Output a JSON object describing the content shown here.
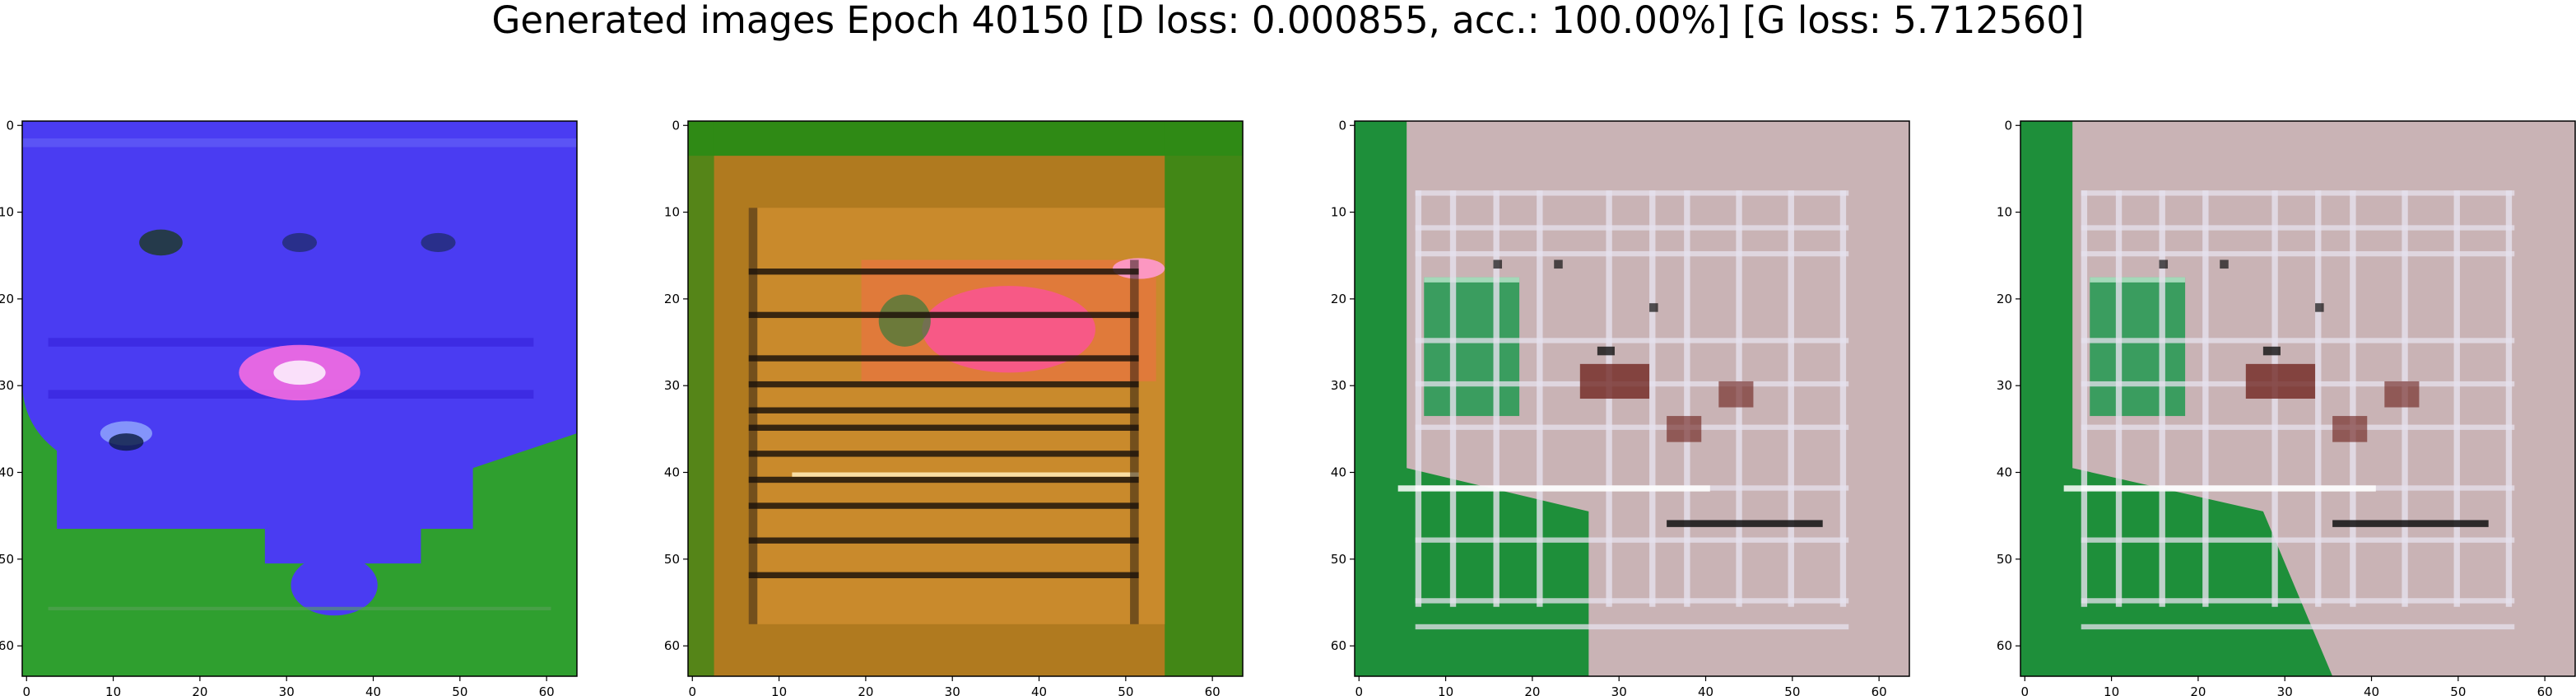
{
  "figure": {
    "title": "Generated images Epoch 40150 [D loss: 0.000855, acc.: 100.00%] [G loss: 5.712560]"
  },
  "chart_data": [
    {
      "type": "heatmap",
      "grid": false,
      "x_ticks": [
        "0",
        "10",
        "20",
        "30",
        "40",
        "50",
        "60"
      ],
      "y_ticks": [
        "0",
        "10",
        "20",
        "30",
        "40",
        "50",
        "60"
      ],
      "xlim": [
        -0.5,
        63.5
      ],
      "ylim": [
        63.5,
        -0.5
      ],
      "colors": {
        "background": "#2f9f2f",
        "blob": "#4a3cf2",
        "blob_dark": "#3520d8",
        "highlight": "#ff6fe0",
        "line": "#5b54f5"
      }
    },
    {
      "type": "heatmap",
      "grid": false,
      "x_ticks": [
        "0",
        "10",
        "20",
        "30",
        "40",
        "50",
        "60"
      ],
      "y_ticks": [
        "0",
        "10",
        "20",
        "30",
        "40",
        "50",
        "60"
      ],
      "xlim": [
        -0.5,
        63.5
      ],
      "ylim": [
        63.5,
        -0.5
      ],
      "colors": {
        "background": "#b07a1f",
        "border": "#2f8a15",
        "center": "#e07a3a",
        "pink": "#ff4fa0",
        "dark_stripes": "#1e140c"
      }
    },
    {
      "type": "heatmap",
      "grid": false,
      "x_ticks": [
        "0",
        "10",
        "20",
        "30",
        "40",
        "50",
        "60"
      ],
      "y_ticks": [
        "0",
        "10",
        "20",
        "30",
        "40",
        "50",
        "60"
      ],
      "xlim": [
        -0.5,
        63.5
      ],
      "ylim": [
        63.5,
        -0.5
      ],
      "colors": {
        "background": "#c9b3b5",
        "green": "#1e8f3a",
        "light_lines": "#e6e1ee",
        "dark_blocks": "#6b1d18"
      }
    },
    {
      "type": "heatmap",
      "grid": false,
      "x_ticks": [
        "0",
        "10",
        "20",
        "30",
        "40",
        "50",
        "60"
      ],
      "y_ticks": [
        "0",
        "10",
        "20",
        "30",
        "40",
        "50",
        "60"
      ],
      "xlim": [
        -0.5,
        63.5
      ],
      "ylim": [
        63.5,
        -0.5
      ],
      "colors": {
        "background": "#c9b3b5",
        "green": "#1e8f3a",
        "light_lines": "#e6e1ee",
        "dark_blocks": "#6b1d18"
      }
    }
  ]
}
